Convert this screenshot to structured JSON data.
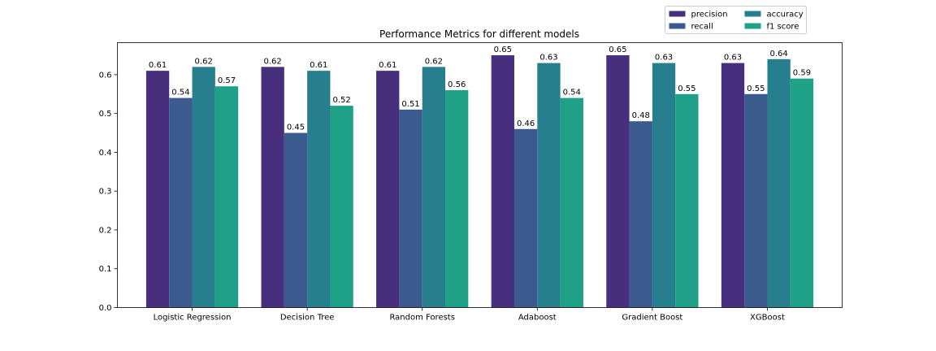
{
  "chart_data": {
    "type": "bar",
    "title": "Performance Metrics for different models",
    "xlabel": "",
    "ylabel": "",
    "categories": [
      "Logistic Regression",
      "Decision Tree",
      "Random Forests",
      "Adaboost",
      "Gradient Boost",
      "XGBoost"
    ],
    "series": [
      {
        "name": "precision",
        "color": "#472f7d",
        "values": [
          0.61,
          0.62,
          0.61,
          0.65,
          0.65,
          0.63
        ]
      },
      {
        "name": "recall",
        "color": "#3b5b8f",
        "values": [
          0.54,
          0.45,
          0.51,
          0.46,
          0.48,
          0.55
        ]
      },
      {
        "name": "accuracy",
        "color": "#277f8e",
        "values": [
          0.62,
          0.61,
          0.62,
          0.63,
          0.63,
          0.64
        ]
      },
      {
        "name": "f1 score",
        "color": "#1fa187",
        "values": [
          0.57,
          0.52,
          0.56,
          0.54,
          0.55,
          0.59
        ]
      }
    ],
    "ylim": [
      0,
      0.6825
    ],
    "yticks": [
      "0.0",
      "0.1",
      "0.2",
      "0.3",
      "0.4",
      "0.5",
      "0.6"
    ],
    "grid": false,
    "legend_position": "top-right, above the plot"
  }
}
